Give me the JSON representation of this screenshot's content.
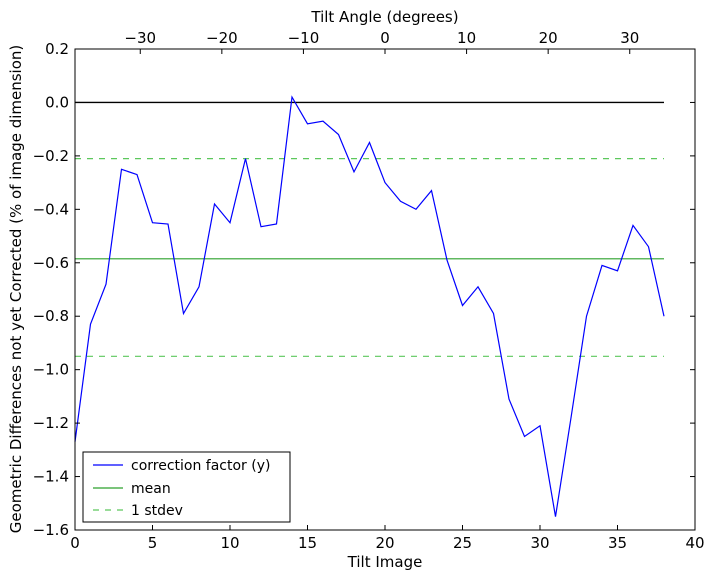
{
  "chart_data": {
    "type": "line",
    "title": "",
    "xlabel": "Tilt Image",
    "ylabel": "Geometric Differences not yet Corrected (% of image dimension)",
    "top_xlabel": "Tilt Angle (degrees)",
    "xlim": [
      0,
      40
    ],
    "ylim": [
      -1.6,
      0.2
    ],
    "top_xlim": [
      -38,
      38
    ],
    "xticks": [
      0,
      5,
      10,
      15,
      20,
      25,
      30,
      35,
      40
    ],
    "yticks": [
      0.2,
      0.0,
      -0.2,
      -0.4,
      -0.6,
      -0.8,
      -1.0,
      -1.2,
      -1.4,
      -1.6
    ],
    "top_xticks": [
      -30,
      -20,
      -10,
      0,
      10,
      20,
      30
    ],
    "grid": false,
    "legend_placement": "lower-left",
    "zero_line": {
      "value": 0.0,
      "color": "#000000"
    },
    "series": [
      {
        "name": "correction factor (y)",
        "color": "#0000ff",
        "style": "solid",
        "x": [
          0,
          1,
          2,
          3,
          4,
          5,
          6,
          7,
          8,
          9,
          10,
          11,
          12,
          13,
          14,
          15,
          16,
          17,
          18,
          19,
          20,
          21,
          22,
          23,
          24,
          25,
          26,
          27,
          28,
          29,
          30,
          31,
          32,
          33,
          34,
          35,
          36,
          37,
          38
        ],
        "y": [
          -1.27,
          -0.83,
          -0.68,
          -0.25,
          -0.27,
          -0.45,
          -0.455,
          -0.79,
          -0.69,
          -0.38,
          -0.45,
          -0.21,
          -0.465,
          -0.455,
          0.02,
          -0.08,
          -0.07,
          -0.12,
          -0.26,
          -0.15,
          -0.3,
          -0.37,
          -0.4,
          -0.33,
          -0.59,
          -0.76,
          -0.69,
          -0.79,
          -1.11,
          -1.25,
          -1.21,
          -1.55,
          -1.18,
          -0.8,
          -0.61,
          -0.63,
          -0.46,
          -0.54,
          -0.8
        ]
      },
      {
        "name": "mean",
        "color": "#2ca02c",
        "style": "solid",
        "x": [
          0,
          38
        ],
        "y": [
          -0.585,
          -0.585
        ]
      },
      {
        "name": "1 stdev",
        "color": "#5cc85c",
        "style": "dashed",
        "x": [
          0,
          38
        ],
        "y": [
          -0.21,
          -0.21
        ]
      },
      {
        "name": "",
        "color": "#5cc85c",
        "style": "dashed",
        "x": [
          0,
          38
        ],
        "y": [
          -0.95,
          -0.95
        ]
      }
    ]
  }
}
